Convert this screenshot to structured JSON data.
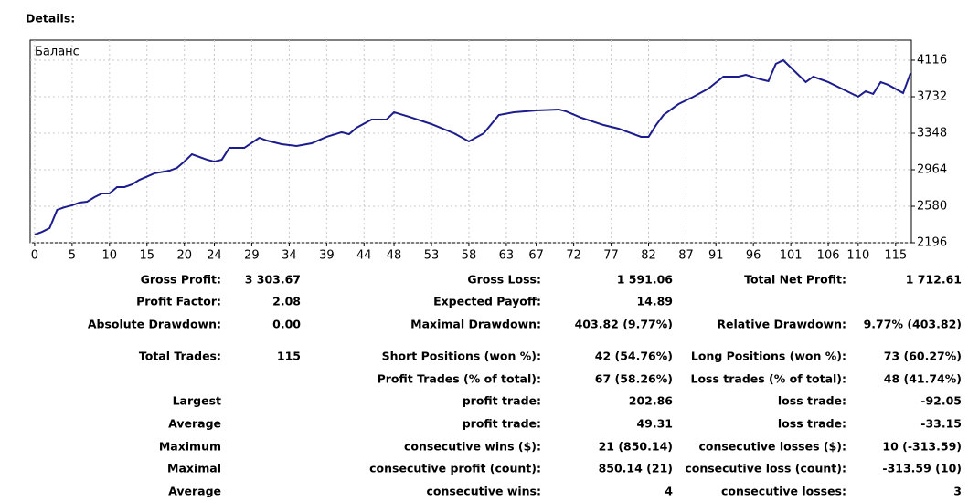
{
  "heading": "Details:",
  "chart_data": {
    "type": "line",
    "title": "Баланс",
    "x": [
      0,
      1,
      2,
      3,
      4,
      5,
      6,
      7,
      8,
      9,
      10,
      11,
      12,
      13,
      14,
      16,
      18,
      19,
      20,
      21,
      23,
      24,
      25,
      26,
      28,
      30,
      31,
      33,
      35,
      37,
      39,
      41,
      42,
      43,
      45,
      47,
      48,
      50,
      53,
      56,
      58,
      60,
      61,
      62,
      64,
      67,
      70,
      71,
      73,
      76,
      78,
      81,
      82,
      83,
      84,
      86,
      88,
      90,
      92,
      94,
      95,
      97,
      98,
      99,
      100,
      101,
      103,
      104,
      106,
      108,
      110,
      111,
      112,
      113,
      114,
      116,
      117
    ],
    "series": [
      {
        "name": "Баланс",
        "color": "#1c1c8e",
        "values": [
          2282,
          2311,
          2350,
          2542,
          2570,
          2590,
          2618,
          2628,
          2676,
          2714,
          2714,
          2782,
          2782,
          2810,
          2858,
          2926,
          2954,
          2983,
          3050,
          3127,
          3070,
          3050,
          3070,
          3194,
          3194,
          3300,
          3271,
          3233,
          3214,
          3242,
          3310,
          3358,
          3338,
          3406,
          3492,
          3492,
          3569,
          3521,
          3444,
          3348,
          3262,
          3348,
          3444,
          3540,
          3569,
          3588,
          3598,
          3578,
          3511,
          3434,
          3396,
          3310,
          3310,
          3434,
          3540,
          3655,
          3732,
          3818,
          3943,
          3943,
          3962,
          3914,
          3895,
          4078,
          4116,
          4039,
          3886,
          3943,
          3886,
          3809,
          3732,
          3790,
          3761,
          3886,
          3857,
          3771,
          3982
        ]
      }
    ],
    "xlim": [
      -0.6,
      117.1
    ],
    "xticks": [
      0,
      5,
      10,
      15,
      20,
      24,
      29,
      34,
      39,
      44,
      48,
      53,
      58,
      63,
      67,
      72,
      77,
      82,
      87,
      91,
      96,
      101,
      106,
      110,
      115
    ],
    "ylim": [
      2196,
      4327
    ],
    "yticks": [
      2196,
      2580,
      2964,
      3348,
      3732,
      4116
    ],
    "grid": true
  },
  "table": {
    "rows": [
      [
        "Gross Profit:",
        "3 303.67",
        "Gross Loss:",
        "1 591.06",
        "Total Net Profit:",
        "1 712.61"
      ],
      [
        "Profit Factor:",
        "2.08",
        "Expected Payoff:",
        "14.89",
        null,
        null
      ],
      [
        "Absolute Drawdown:",
        "0.00",
        "Maximal Drawdown:",
        "403.82 (9.77%)",
        "Relative Drawdown:",
        "9.77% (403.82)"
      ],
      [
        "Total Trades:",
        "115",
        "Short Positions (won %):",
        "42 (54.76%)",
        "Long Positions (won %):",
        "73 (60.27%)"
      ],
      [
        null,
        null,
        "Profit Trades (% of total):",
        "67 (58.26%)",
        "Loss trades (% of total):",
        "48 (41.74%)"
      ],
      [
        "Largest",
        null,
        "profit trade:",
        "202.86",
        "loss trade:",
        "-92.05"
      ],
      [
        "Average",
        null,
        "profit trade:",
        "49.31",
        "loss trade:",
        "-33.15"
      ],
      [
        "Maximum",
        null,
        "consecutive wins ($):",
        "21 (850.14)",
        "consecutive losses ($):",
        "10 (-313.59)"
      ],
      [
        "Maximal",
        null,
        "consecutive profit (count):",
        "850.14 (21)",
        "consecutive loss (count):",
        "-313.59 (10)"
      ],
      [
        "Average",
        null,
        "consecutive wins:",
        "4",
        "consecutive losses:",
        "3"
      ]
    ]
  }
}
